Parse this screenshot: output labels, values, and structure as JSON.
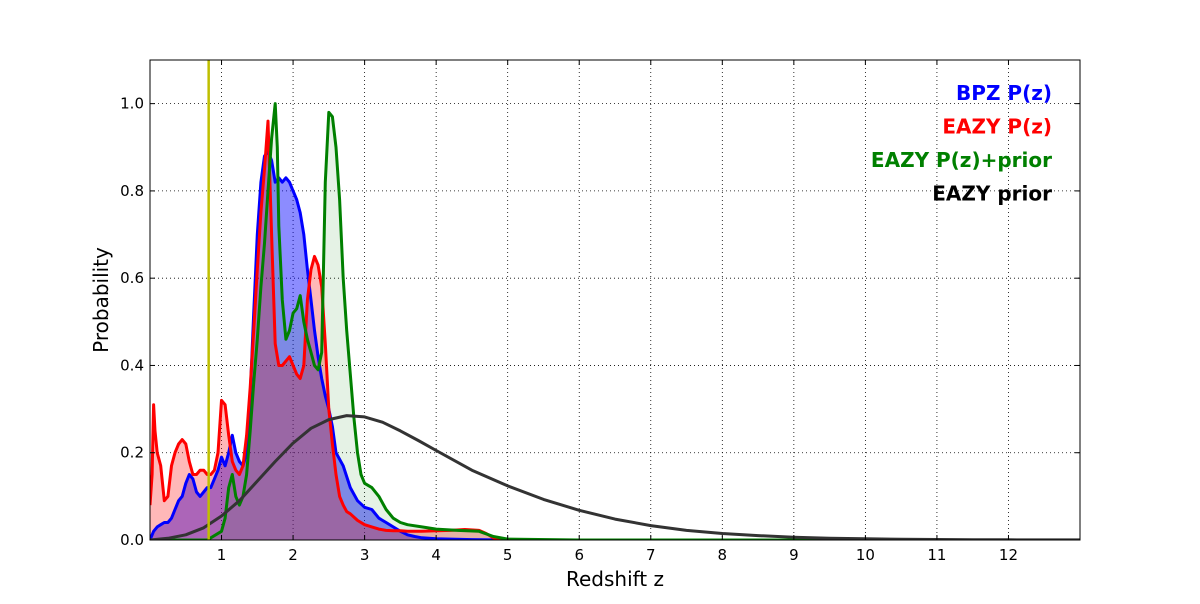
{
  "chart_data": {
    "type": "area",
    "title": "",
    "xlabel": "Redshift z",
    "ylabel": "Probability",
    "xlim": [
      0,
      13
    ],
    "ylim": [
      0,
      1.1
    ],
    "xticks": [
      1,
      2,
      3,
      4,
      5,
      6,
      7,
      8,
      9,
      10,
      11,
      12
    ],
    "yticks": [
      0.0,
      0.2,
      0.4,
      0.6,
      0.8,
      1.0
    ],
    "xtick_labels": [
      "1",
      "2",
      "3",
      "4",
      "5",
      "6",
      "7",
      "8",
      "9",
      "10",
      "11",
      "12"
    ],
    "ytick_labels": [
      "0.0",
      "0.2",
      "0.4",
      "0.6",
      "0.8",
      "1.0"
    ],
    "grid": true,
    "legend_position": "top-right",
    "vertical_line": {
      "x": 0.82,
      "color": "#bfbf00"
    },
    "legend": [
      {
        "label": "BPZ P(z)",
        "color": "#0000ff"
      },
      {
        "label": "EAZY P(z)",
        "color": "#ff0000"
      },
      {
        "label": "EAZY P(z)+prior",
        "color": "#008000"
      },
      {
        "label": "EAZY prior",
        "color": "#000000"
      }
    ],
    "series": [
      {
        "name": "BPZ P(z)",
        "color": "#0000ff",
        "fill": "#0000ff",
        "fill_opacity": 0.45,
        "x": [
          0.0,
          0.05,
          0.1,
          0.15,
          0.2,
          0.25,
          0.3,
          0.35,
          0.4,
          0.45,
          0.5,
          0.55,
          0.6,
          0.65,
          0.7,
          0.75,
          0.8,
          0.85,
          0.9,
          0.95,
          1.0,
          1.05,
          1.1,
          1.15,
          1.2,
          1.25,
          1.3,
          1.35,
          1.4,
          1.45,
          1.5,
          1.55,
          1.6,
          1.65,
          1.7,
          1.75,
          1.8,
          1.85,
          1.9,
          1.95,
          2.0,
          2.05,
          2.1,
          2.15,
          2.2,
          2.25,
          2.3,
          2.35,
          2.4,
          2.45,
          2.5,
          2.55,
          2.6,
          2.7,
          2.8,
          2.9,
          3.0,
          3.1,
          3.2,
          3.3,
          3.4,
          3.5,
          3.6,
          3.7,
          3.8,
          4.0,
          4.2,
          4.5,
          5.0,
          6.0,
          8.0,
          10.0,
          12.0,
          13.0
        ],
        "y": [
          0.0,
          0.02,
          0.03,
          0.035,
          0.04,
          0.04,
          0.05,
          0.07,
          0.09,
          0.1,
          0.13,
          0.15,
          0.14,
          0.11,
          0.1,
          0.11,
          0.12,
          0.12,
          0.14,
          0.16,
          0.19,
          0.17,
          0.2,
          0.24,
          0.2,
          0.18,
          0.17,
          0.2,
          0.33,
          0.52,
          0.7,
          0.82,
          0.88,
          0.89,
          0.87,
          0.82,
          0.83,
          0.82,
          0.83,
          0.82,
          0.8,
          0.78,
          0.75,
          0.7,
          0.62,
          0.55,
          0.48,
          0.42,
          0.37,
          0.33,
          0.3,
          0.26,
          0.2,
          0.17,
          0.12,
          0.09,
          0.075,
          0.07,
          0.05,
          0.04,
          0.03,
          0.02,
          0.012,
          0.008,
          0.005,
          0.003,
          0.002,
          0.001,
          0.0,
          0.0,
          0.0,
          0.0,
          0.0,
          0.0
        ]
      },
      {
        "name": "EAZY P(z)",
        "color": "#ff0000",
        "fill": "#ff0000",
        "fill_opacity": 0.28,
        "x": [
          0.0,
          0.03,
          0.05,
          0.07,
          0.1,
          0.15,
          0.2,
          0.25,
          0.3,
          0.35,
          0.4,
          0.45,
          0.5,
          0.55,
          0.6,
          0.65,
          0.7,
          0.75,
          0.8,
          0.85,
          0.9,
          0.95,
          1.0,
          1.05,
          1.1,
          1.15,
          1.2,
          1.25,
          1.3,
          1.35,
          1.4,
          1.45,
          1.5,
          1.55,
          1.6,
          1.65,
          1.7,
          1.75,
          1.8,
          1.85,
          1.9,
          1.95,
          2.0,
          2.05,
          2.1,
          2.15,
          2.2,
          2.25,
          2.3,
          2.35,
          2.4,
          2.45,
          2.5,
          2.55,
          2.6,
          2.65,
          2.7,
          2.75,
          2.8,
          2.9,
          3.0,
          3.1,
          3.2,
          3.3,
          3.4,
          3.5,
          3.6,
          3.8,
          4.0,
          4.2,
          4.4,
          4.6,
          4.7,
          4.8,
          4.9,
          5.0,
          6.0,
          8.0,
          10.0,
          12.0,
          13.0
        ],
        "y": [
          0.08,
          0.15,
          0.31,
          0.25,
          0.2,
          0.17,
          0.09,
          0.1,
          0.17,
          0.2,
          0.22,
          0.23,
          0.22,
          0.18,
          0.15,
          0.15,
          0.16,
          0.16,
          0.15,
          0.15,
          0.16,
          0.2,
          0.32,
          0.31,
          0.24,
          0.18,
          0.16,
          0.15,
          0.17,
          0.24,
          0.35,
          0.48,
          0.62,
          0.75,
          0.85,
          0.96,
          0.7,
          0.45,
          0.4,
          0.4,
          0.41,
          0.42,
          0.4,
          0.38,
          0.37,
          0.4,
          0.55,
          0.62,
          0.65,
          0.63,
          0.58,
          0.45,
          0.3,
          0.22,
          0.15,
          0.1,
          0.08,
          0.065,
          0.06,
          0.045,
          0.035,
          0.03,
          0.025,
          0.022,
          0.021,
          0.021,
          0.02,
          0.02,
          0.021,
          0.022,
          0.024,
          0.022,
          0.015,
          0.005,
          0.001,
          0.0,
          0.0,
          0.0,
          0.0,
          0.0,
          0.0
        ]
      },
      {
        "name": "EAZY P(z)+prior",
        "color": "#008000",
        "fill": "#008000",
        "fill_opacity": 0.1,
        "x": [
          0.0,
          0.5,
          0.8,
          1.0,
          1.05,
          1.1,
          1.15,
          1.2,
          1.25,
          1.3,
          1.35,
          1.4,
          1.45,
          1.5,
          1.55,
          1.6,
          1.65,
          1.7,
          1.75,
          1.78,
          1.8,
          1.85,
          1.9,
          1.95,
          2.0,
          2.05,
          2.1,
          2.15,
          2.2,
          2.25,
          2.3,
          2.35,
          2.4,
          2.45,
          2.5,
          2.55,
          2.6,
          2.65,
          2.7,
          2.75,
          2.8,
          2.85,
          2.9,
          2.95,
          3.0,
          3.1,
          3.2,
          3.3,
          3.4,
          3.5,
          3.6,
          3.8,
          4.0,
          4.3,
          4.6,
          4.8,
          5.0,
          6.0,
          8.0,
          10.0,
          12.0,
          13.0
        ],
        "y": [
          0.0,
          0.0,
          0.0,
          0.02,
          0.05,
          0.12,
          0.15,
          0.1,
          0.08,
          0.1,
          0.15,
          0.25,
          0.36,
          0.46,
          0.58,
          0.68,
          0.8,
          0.92,
          1.0,
          0.9,
          0.72,
          0.55,
          0.46,
          0.48,
          0.52,
          0.53,
          0.56,
          0.5,
          0.46,
          0.43,
          0.4,
          0.39,
          0.43,
          0.82,
          0.98,
          0.97,
          0.9,
          0.78,
          0.6,
          0.48,
          0.38,
          0.28,
          0.2,
          0.15,
          0.13,
          0.12,
          0.1,
          0.07,
          0.05,
          0.04,
          0.035,
          0.03,
          0.025,
          0.022,
          0.02,
          0.008,
          0.002,
          0.0,
          0.0,
          0.0,
          0.0,
          0.0
        ]
      },
      {
        "name": "EAZY prior",
        "color": "#333333",
        "fill": "none",
        "x": [
          0.0,
          0.25,
          0.5,
          0.75,
          1.0,
          1.25,
          1.5,
          1.75,
          2.0,
          2.25,
          2.5,
          2.75,
          3.0,
          3.25,
          3.5,
          3.75,
          4.0,
          4.5,
          5.0,
          5.5,
          6.0,
          6.5,
          7.0,
          7.5,
          8.0,
          8.5,
          9.0,
          9.5,
          10.0,
          10.5,
          11.0,
          11.5,
          12.0,
          12.5,
          13.0
        ],
        "y": [
          0.0,
          0.004,
          0.012,
          0.028,
          0.055,
          0.09,
          0.135,
          0.18,
          0.222,
          0.256,
          0.276,
          0.285,
          0.282,
          0.27,
          0.25,
          0.228,
          0.205,
          0.16,
          0.124,
          0.093,
          0.068,
          0.048,
          0.033,
          0.022,
          0.015,
          0.01,
          0.0065,
          0.0042,
          0.0027,
          0.0017,
          0.0011,
          0.0007,
          0.00045,
          0.0003,
          0.0002
        ]
      }
    ]
  }
}
